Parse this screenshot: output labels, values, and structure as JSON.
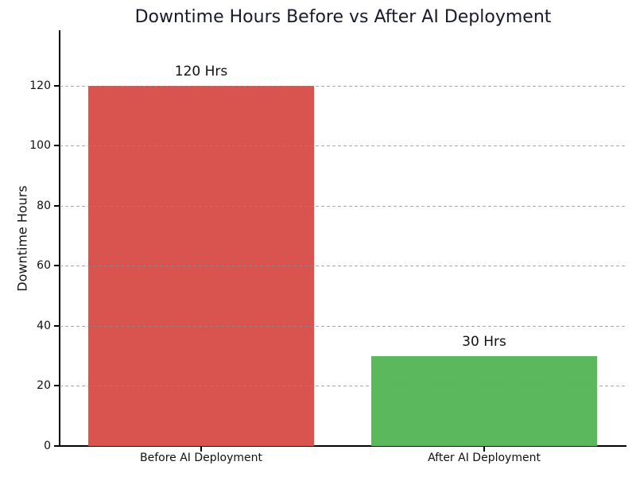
{
  "chart_data": {
    "type": "bar",
    "title": "Downtime Hours Before vs After AI Deployment",
    "xlabel": "",
    "ylabel": "Downtime Hours",
    "categories": [
      "Before AI Deployment",
      "After AI Deployment"
    ],
    "values": [
      120,
      30
    ],
    "value_labels": [
      "120 Hrs",
      "30 Hrs"
    ],
    "bar_colors": [
      "#d9534f",
      "#5cb85c"
    ],
    "yticks": [
      0,
      20,
      40,
      60,
      80,
      100,
      120
    ],
    "ylim": [
      0,
      138.5
    ],
    "bar_width_fraction": 0.4,
    "grid": "y-axis dashed",
    "gridline_color": "#8c8c8c",
    "legend": "none",
    "title_color": "#1a1a2e",
    "axis_color": "#000000",
    "background_color": "#ffffff"
  }
}
